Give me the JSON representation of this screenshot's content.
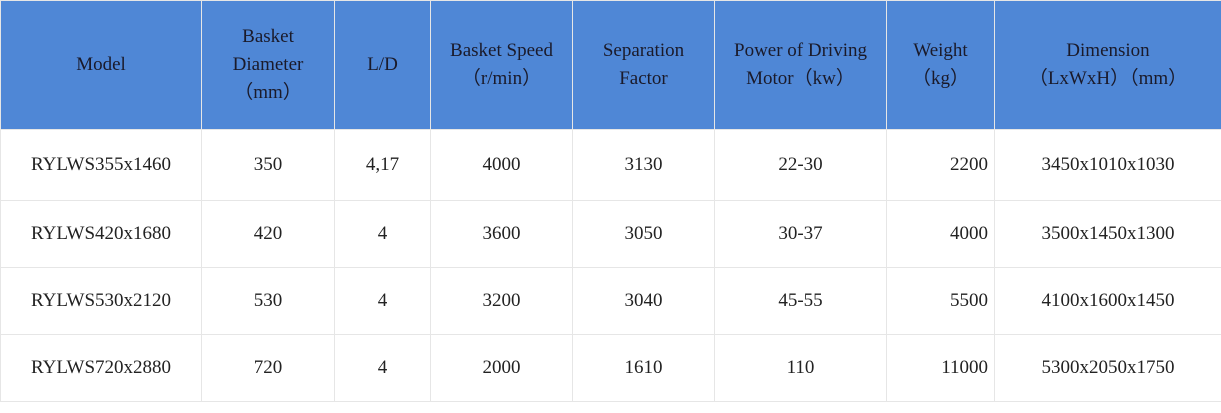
{
  "table": {
    "header": [
      [
        "Model"
      ],
      [
        "Basket",
        "Diameter",
        "（mm）"
      ],
      [
        "L/D"
      ],
      [
        "Basket Speed",
        "（r/min）"
      ],
      [
        "Separation",
        "Factor"
      ],
      [
        "Power of Driving",
        "Motor（kw）"
      ],
      [
        "Weight",
        "（kg）"
      ],
      [
        "Dimension",
        "（LxWxH）（mm）"
      ]
    ],
    "rows": [
      [
        "RYLWS355x1460",
        "350",
        "4,17",
        "4000",
        "3130",
        "22-30",
        "2200",
        "3450x1010x1030"
      ],
      [
        "RYLWS420x1680",
        "420",
        "4",
        "3600",
        "3050",
        "30-37",
        "4000",
        "3500x1450x1300"
      ],
      [
        "RYLWS530x2120",
        "530",
        "4",
        "3200",
        "3040",
        "45-55",
        "5500",
        "4100x1600x1450"
      ],
      [
        "RYLWS720x2880",
        "720",
        "4",
        "2000",
        "1610",
        "110",
        "11000",
        "5300x2050x1750"
      ]
    ]
  }
}
